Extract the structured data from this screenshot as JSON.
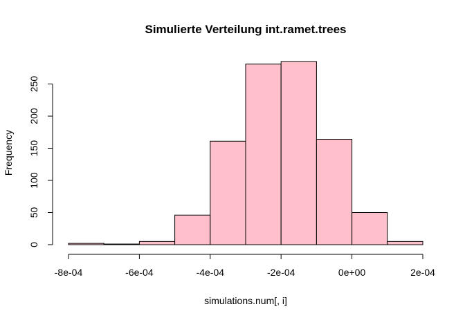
{
  "chart_data": {
    "type": "bar",
    "title": "Simulierte Verteilung int.ramet.trees",
    "xlabel": "simulations.num[, i]",
    "ylabel": "Frequency",
    "bins": [
      {
        "start": -0.0008,
        "end": -0.0007,
        "count": 2
      },
      {
        "start": -0.0007,
        "end": -0.0006,
        "count": 1
      },
      {
        "start": -0.0006,
        "end": -0.0005,
        "count": 5
      },
      {
        "start": -0.0005,
        "end": -0.0004,
        "count": 46
      },
      {
        "start": -0.0004,
        "end": -0.0003,
        "count": 161
      },
      {
        "start": -0.0003,
        "end": -0.0002,
        "count": 281
      },
      {
        "start": -0.0002,
        "end": -0.0001,
        "count": 285
      },
      {
        "start": -0.0001,
        "end": 0.0,
        "count": 164
      },
      {
        "start": 0.0,
        "end": 0.0001,
        "count": 50
      },
      {
        "start": 0.0001,
        "end": 0.0002,
        "count": 5
      }
    ],
    "xlim": [
      -0.0008,
      0.0002
    ],
    "ylim": [
      0,
      285
    ],
    "x_ticks": [
      {
        "value": -0.0008,
        "label": "-8e-04"
      },
      {
        "value": -0.0006,
        "label": "-6e-04"
      },
      {
        "value": -0.0004,
        "label": "-4e-04"
      },
      {
        "value": -0.0002,
        "label": "-2e-04"
      },
      {
        "value": 0.0,
        "label": "0e+00"
      },
      {
        "value": 0.0002,
        "label": "2e-04"
      }
    ],
    "y_ticks": [
      {
        "value": 0,
        "label": "0"
      },
      {
        "value": 50,
        "label": "50"
      },
      {
        "value": 100,
        "label": "100"
      },
      {
        "value": 150,
        "label": "150"
      },
      {
        "value": 200,
        "label": "200"
      },
      {
        "value": 250,
        "label": "250"
      }
    ],
    "bar_fill": "#FFC0CB",
    "bar_stroke": "#000000",
    "grid": false
  }
}
